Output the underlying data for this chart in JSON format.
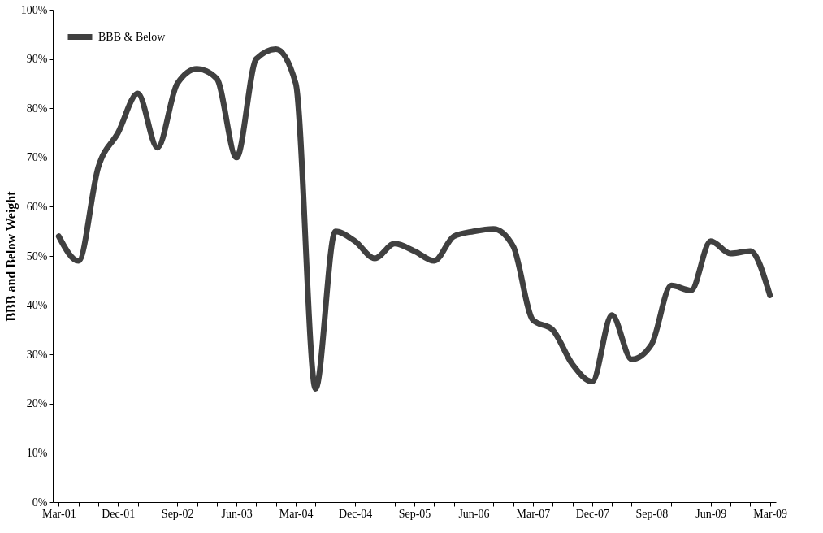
{
  "chart_data": {
    "type": "line",
    "ylabel": "BBB and Below Weight",
    "categories": [
      "Mar-01",
      null,
      null,
      "Dec-01",
      null,
      null,
      "Sep-02",
      null,
      null,
      "Jun-03",
      null,
      null,
      "Mar-04",
      null,
      null,
      "Dec-04",
      null,
      null,
      "Sep-05",
      null,
      null,
      "Jun-06",
      null,
      null,
      "Mar-07",
      null,
      null,
      "Dec-07",
      null,
      null,
      "Sep-08",
      null,
      null,
      "Jun-09",
      null,
      null,
      "Mar-09"
    ],
    "series": [
      {
        "name": "BBB & Below",
        "color": "#404040",
        "values": [
          54,
          49,
          68,
          75,
          83,
          72,
          85,
          88,
          86,
          70,
          90,
          92,
          85,
          23,
          55,
          53,
          49.5,
          52.5,
          51,
          49,
          54,
          55,
          55.5,
          52,
          37,
          35,
          28,
          24.5,
          38,
          29,
          32,
          44,
          43,
          53,
          50.5,
          51,
          42
        ]
      }
    ],
    "ylim": [
      0,
      100
    ],
    "yticks": [
      {
        "value": 0,
        "label": "0%"
      },
      {
        "value": 10,
        "label": "10%"
      },
      {
        "value": 20,
        "label": "20%"
      },
      {
        "value": 30,
        "label": "30%"
      },
      {
        "value": 40,
        "label": "40%"
      },
      {
        "value": 50,
        "label": "50%"
      },
      {
        "value": 60,
        "label": "60%"
      },
      {
        "value": 70,
        "label": "70%"
      },
      {
        "value": 80,
        "label": "80%"
      },
      {
        "value": 90,
        "label": "90%"
      },
      {
        "value": 100,
        "label": "100%"
      }
    ],
    "grid": false,
    "legend": "top left",
    "line_style": "solid",
    "marker": "none"
  }
}
